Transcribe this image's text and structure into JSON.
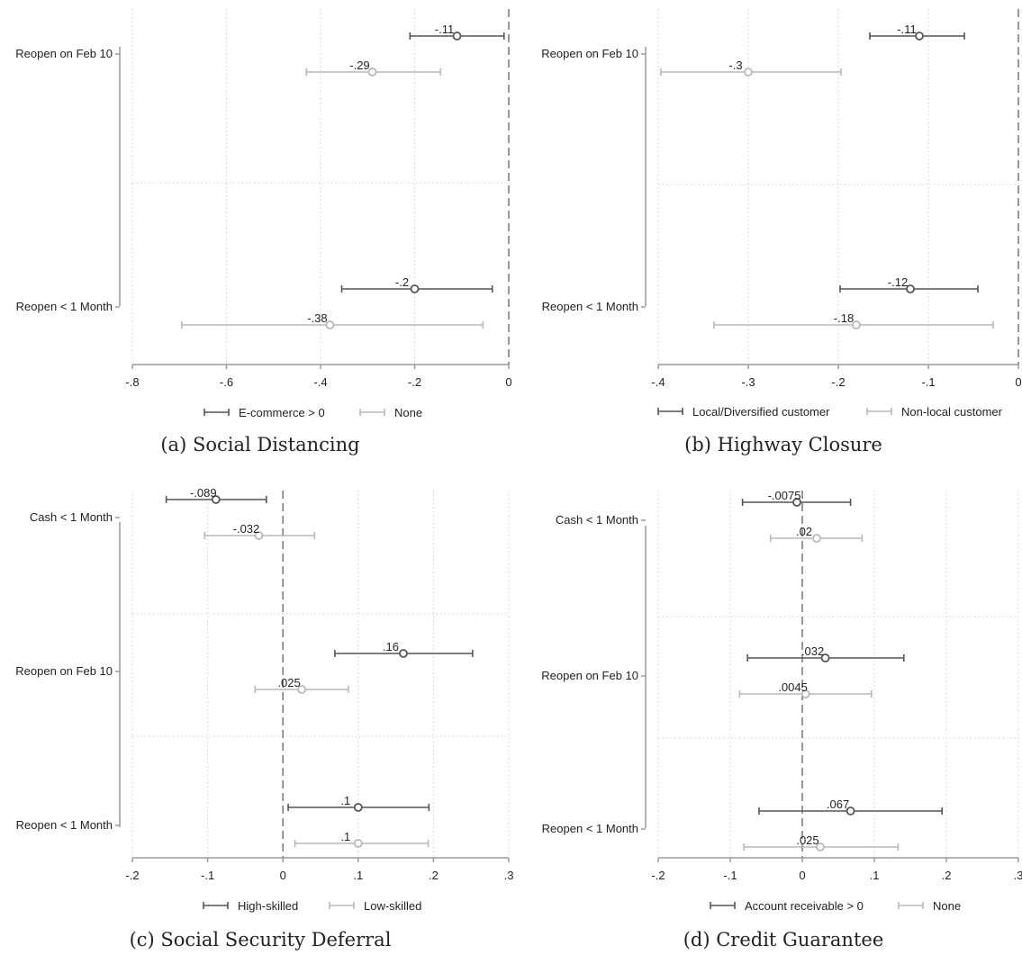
{
  "colors": {
    "series_dark": "#555555",
    "series_light": "#b8b8b8",
    "axis": "#9a9a9a",
    "grid": "#d0d0d0",
    "zero": "#777777"
  },
  "chart_data": [
    {
      "type": "scatter",
      "subtype": "coefficient-plot",
      "caption": "(a) Social Distancing",
      "categories": [
        "Reopen on Feb 10",
        "Reopen < 1 Month"
      ],
      "xlim": [
        -0.8,
        0
      ],
      "xticks": [
        -0.8,
        -0.6,
        -0.4,
        -0.2,
        0
      ],
      "xtick_labels": [
        "-.8",
        "-.6",
        "-.4",
        "-.2",
        "0"
      ],
      "series": [
        {
          "name": "E-commerce > 0",
          "color": "dark",
          "points": [
            {
              "category": "Reopen on Feb 10",
              "estimate": -0.11,
              "label": "-.11",
              "ci": [
                -0.21,
                -0.01
              ]
            },
            {
              "category": "Reopen < 1 Month",
              "estimate": -0.2,
              "label": "-.2",
              "ci": [
                -0.355,
                -0.035
              ]
            }
          ]
        },
        {
          "name": "None",
          "color": "light",
          "points": [
            {
              "category": "Reopen on Feb 10",
              "estimate": -0.29,
              "label": "-.29",
              "ci": [
                -0.43,
                -0.145
              ]
            },
            {
              "category": "Reopen < 1 Month",
              "estimate": -0.38,
              "label": "-.38",
              "ci": [
                -0.695,
                -0.055
              ]
            }
          ]
        }
      ],
      "legend_position": "bottom"
    },
    {
      "type": "scatter",
      "subtype": "coefficient-plot",
      "caption": "(b) Highway Closure",
      "categories": [
        "Reopen on Feb 10",
        "Reopen < 1 Month"
      ],
      "xlim": [
        -0.4,
        0
      ],
      "xticks": [
        -0.4,
        -0.3,
        -0.2,
        -0.1,
        0
      ],
      "xtick_labels": [
        "-.4",
        "-.3",
        "-.2",
        "-.1",
        "0"
      ],
      "series": [
        {
          "name": "Local/Diversified customer",
          "color": "dark",
          "points": [
            {
              "category": "Reopen on Feb 10",
              "estimate": -0.11,
              "label": "-.11",
              "ci": [
                -0.165,
                -0.06
              ]
            },
            {
              "category": "Reopen < 1 Month",
              "estimate": -0.12,
              "label": "-.12",
              "ci": [
                -0.198,
                -0.045
              ]
            }
          ]
        },
        {
          "name": "Non-local customer",
          "color": "light",
          "points": [
            {
              "category": "Reopen on Feb 10",
              "estimate": -0.3,
              "label": "-.3",
              "ci": [
                -0.397,
                -0.197
              ]
            },
            {
              "category": "Reopen < 1 Month",
              "estimate": -0.18,
              "label": "-.18",
              "ci": [
                -0.338,
                -0.028
              ]
            }
          ]
        }
      ],
      "legend_position": "bottom"
    },
    {
      "type": "scatter",
      "subtype": "coefficient-plot",
      "caption": "(c) Social Security Deferral",
      "categories": [
        "Cash < 1 Month",
        "Reopen on Feb 10",
        "Reopen < 1 Month"
      ],
      "xlim": [
        -0.2,
        0.3
      ],
      "xticks": [
        -0.2,
        -0.1,
        0,
        0.1,
        0.2,
        0.3
      ],
      "xtick_labels": [
        "-.2",
        "-.1",
        "0",
        ".1",
        ".2",
        ".3"
      ],
      "series": [
        {
          "name": "High-skilled",
          "color": "dark",
          "points": [
            {
              "category": "Cash < 1 Month",
              "estimate": -0.089,
              "label": "-.089",
              "ci": [
                -0.155,
                -0.022
              ]
            },
            {
              "category": "Reopen on Feb 10",
              "estimate": 0.16,
              "label": ".16",
              "ci": [
                0.069,
                0.252
              ]
            },
            {
              "category": "Reopen < 1 Month",
              "estimate": 0.1,
              "label": ".1",
              "ci": [
                0.007,
                0.194
              ]
            }
          ]
        },
        {
          "name": "Low-skilled",
          "color": "light",
          "points": [
            {
              "category": "Cash < 1 Month",
              "estimate": -0.032,
              "label": "-.032",
              "ci": [
                -0.104,
                0.042
              ]
            },
            {
              "category": "Reopen on Feb 10",
              "estimate": 0.025,
              "label": ".025",
              "ci": [
                -0.037,
                0.087
              ]
            },
            {
              "category": "Reopen < 1 Month",
              "estimate": 0.1,
              "label": ".1",
              "ci": [
                0.016,
                0.193
              ]
            }
          ]
        }
      ],
      "legend_position": "bottom"
    },
    {
      "type": "scatter",
      "subtype": "coefficient-plot",
      "caption": "(d) Credit Guarantee",
      "categories": [
        "Cash < 1 Month",
        "Reopen on Feb 10",
        "Reopen < 1 Month"
      ],
      "xlim": [
        -0.2,
        0.3
      ],
      "xticks": [
        -0.2,
        -0.1,
        0,
        0.1,
        0.2,
        0.3
      ],
      "xtick_labels": [
        "-.2",
        "-.1",
        "0",
        ".1",
        ".2",
        ".3"
      ],
      "series": [
        {
          "name": "Account receivable > 0",
          "color": "dark",
          "points": [
            {
              "category": "Cash < 1 Month",
              "estimate": -0.0075,
              "label": "-.0075",
              "ci": [
                -0.083,
                0.067
              ]
            },
            {
              "category": "Reopen on Feb 10",
              "estimate": 0.032,
              "label": ".032",
              "ci": [
                -0.076,
                0.141
              ]
            },
            {
              "category": "Reopen < 1 Month",
              "estimate": 0.067,
              "label": ".067",
              "ci": [
                -0.06,
                0.194
              ]
            }
          ]
        },
        {
          "name": "None",
          "color": "light",
          "points": [
            {
              "category": "Cash < 1 Month",
              "estimate": 0.02,
              "label": ".02",
              "ci": [
                -0.044,
                0.083
              ]
            },
            {
              "category": "Reopen on Feb 10",
              "estimate": 0.0045,
              "label": ".0045",
              "ci": [
                -0.087,
                0.096
              ]
            },
            {
              "category": "Reopen < 1 Month",
              "estimate": 0.025,
              "label": ".025",
              "ci": [
                -0.081,
                0.133
              ]
            }
          ]
        }
      ],
      "legend_position": "bottom"
    }
  ]
}
